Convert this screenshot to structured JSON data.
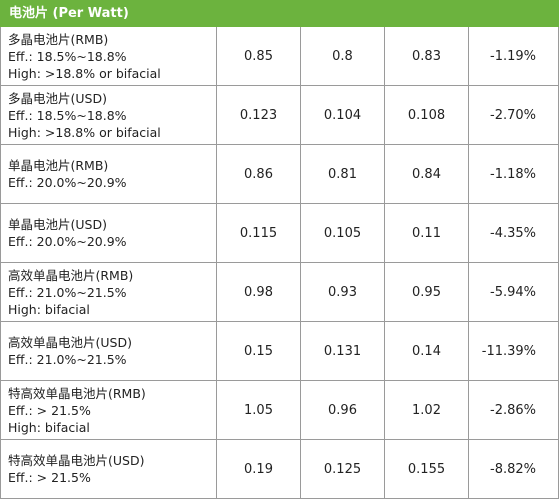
{
  "header": {
    "title": "电池片 (Per Watt)"
  },
  "rows": [
    {
      "name": "多晶电池片(RMB)",
      "lines": [
        "Eff.: 18.5%~18.8%",
        "High: >18.8% or bifacial"
      ],
      "v1": "0.85",
      "v2": "0.8",
      "v3": "0.83",
      "change": "-1.19%"
    },
    {
      "name": "多晶电池片(USD)",
      "lines": [
        "Eff.: 18.5%~18.8%",
        "High: >18.8% or bifacial"
      ],
      "v1": "0.123",
      "v2": "0.104",
      "v3": "0.108",
      "change": "-2.70%"
    },
    {
      "name": "单晶电池片(RMB)",
      "lines": [
        "Eff.: 20.0%~20.9%"
      ],
      "v1": "0.86",
      "v2": "0.81",
      "v3": "0.84",
      "change": "-1.18%"
    },
    {
      "name": "单晶电池片(USD)",
      "lines": [
        "Eff.: 20.0%~20.9%"
      ],
      "v1": "0.115",
      "v2": "0.105",
      "v3": "0.11",
      "change": "-4.35%"
    },
    {
      "name": "高效单晶电池片(RMB)",
      "lines": [
        "Eff.: 21.0%~21.5%",
        "High: bifacial"
      ],
      "v1": "0.98",
      "v2": "0.93",
      "v3": "0.95",
      "change": "-5.94%"
    },
    {
      "name": "高效单晶电池片(USD)",
      "lines": [
        "Eff.: 21.0%~21.5%"
      ],
      "v1": "0.15",
      "v2": "0.131",
      "v3": "0.14",
      "change": "-11.39%"
    },
    {
      "name": "特高效单晶电池片(RMB)",
      "lines": [
        "Eff.: > 21.5%",
        "High: bifacial"
      ],
      "v1": "1.05",
      "v2": "0.96",
      "v3": "1.02",
      "change": "-2.86%"
    },
    {
      "name": "特高效单晶电池片(USD)",
      "lines": [
        "Eff.: > 21.5%"
      ],
      "v1": "0.19",
      "v2": "0.125",
      "v3": "0.155",
      "change": "-8.82%"
    }
  ],
  "colors": {
    "header_bg": "#6cb33e",
    "header_text": "#ffffff",
    "border": "#9a9a9a"
  }
}
